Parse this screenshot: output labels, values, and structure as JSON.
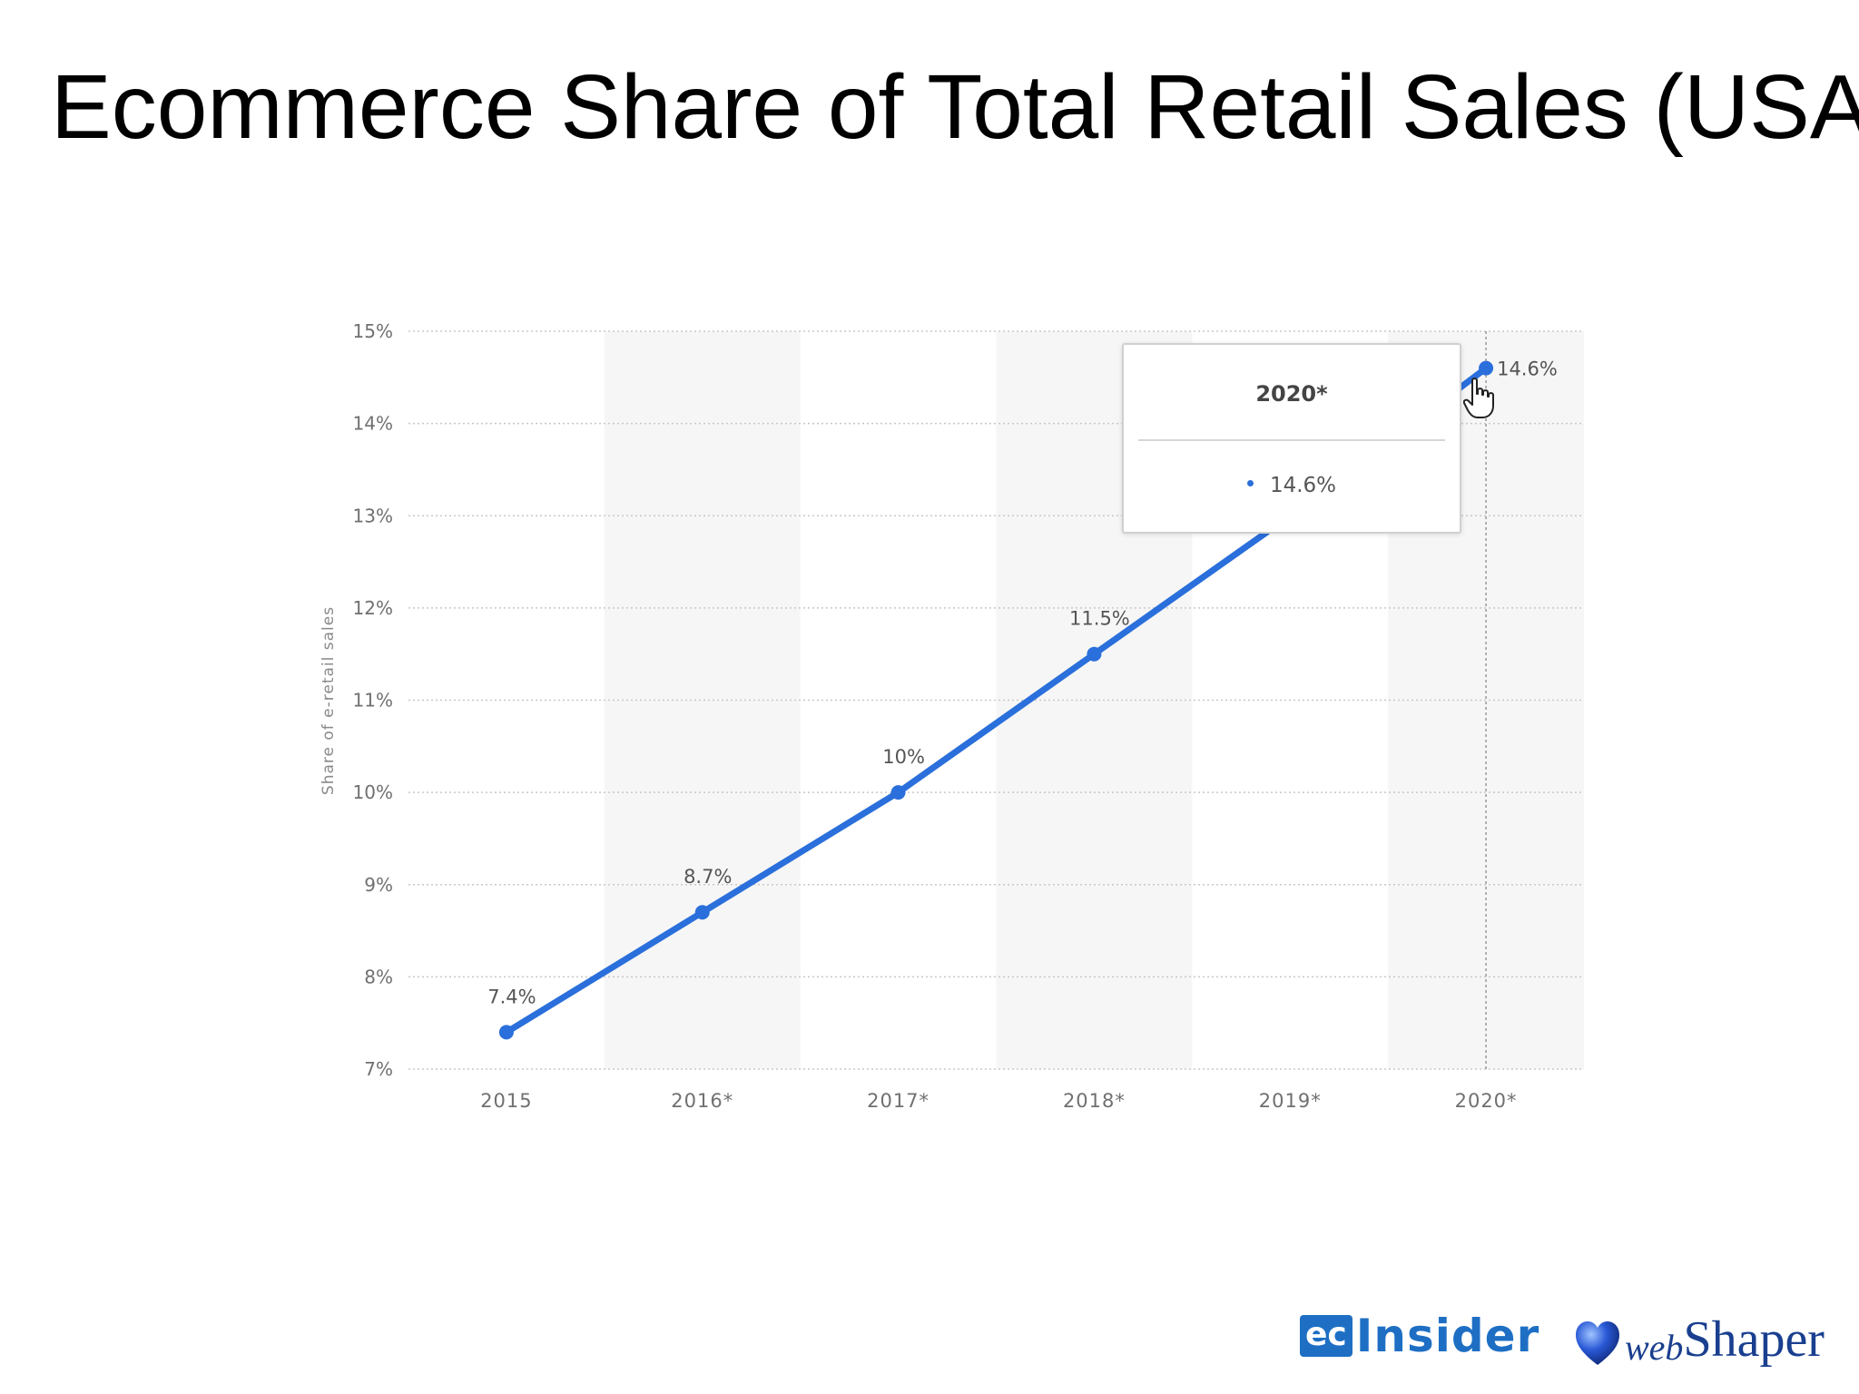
{
  "slide": {
    "title": "Ecommerce Share of Total Retail Sales (USA)"
  },
  "chart_data": {
    "type": "line",
    "categories": [
      "2015",
      "2016*",
      "2017*",
      "2018*",
      "2019*",
      "2020*"
    ],
    "values": [
      7.4,
      8.7,
      10.0,
      11.5,
      13.0,
      14.6
    ],
    "data_labels": [
      "7.4%",
      "8.7%",
      "10%",
      "11.5%",
      "",
      "14.6%"
    ],
    "y_ticks": [
      "7%",
      "8%",
      "9%",
      "10%",
      "11%",
      "12%",
      "13%",
      "14%",
      "15%"
    ],
    "ylim": [
      7,
      15
    ],
    "title": "",
    "xlabel": "",
    "ylabel": "Share of e-retail sales",
    "grid": true,
    "line_color": "#2a6fdb",
    "band_color": "#f6f6f7"
  },
  "tooltip": {
    "title": "2020*",
    "value": "14.6%"
  },
  "logos": {
    "ec_box": "ec",
    "ec_word": "Insider",
    "ws_web": "web",
    "ws_shaper": "Shaper"
  }
}
